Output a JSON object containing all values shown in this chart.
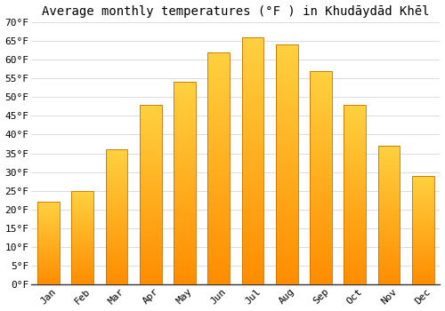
{
  "title": "Average monthly temperatures (°F ) in Khudāydād Khēl",
  "months": [
    "Jan",
    "Feb",
    "Mar",
    "Apr",
    "May",
    "Jun",
    "Jul",
    "Aug",
    "Sep",
    "Oct",
    "Nov",
    "Dec"
  ],
  "values": [
    22,
    25,
    36,
    48,
    54,
    62,
    66,
    64,
    57,
    48,
    37,
    29
  ],
  "bar_color": "#FFA726",
  "bar_edge_color": "#E69010",
  "ylim": [
    0,
    70
  ],
  "ytick_step": 5,
  "background_color": "#ffffff",
  "grid_color": "#dddddd",
  "title_fontsize": 10,
  "tick_fontsize": 8
}
